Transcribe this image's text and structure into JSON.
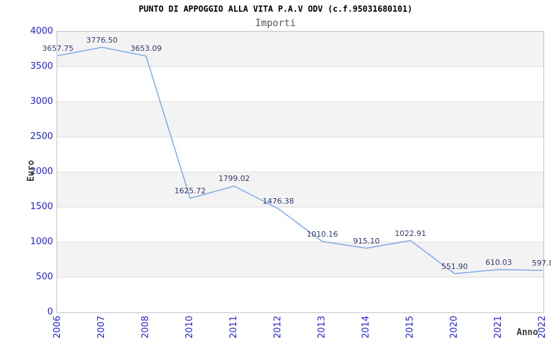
{
  "header": {
    "title": "PUNTO DI APPOGGIO ALLA VITA P.A.V ODV (c.f.95031680101)",
    "subtitle": "Importi"
  },
  "chart_data": {
    "type": "line",
    "title": "PUNTO DI APPOGGIO ALLA VITA P.A.V ODV (c.f.95031680101)",
    "subtitle": "Importi",
    "xlabel": "Anno",
    "ylabel": "Euro",
    "categories": [
      "2006",
      "2007",
      "2008",
      "2010",
      "2011",
      "2012",
      "2013",
      "2014",
      "2015",
      "2020",
      "2021",
      "2022"
    ],
    "values": [
      3657.75,
      3776.5,
      3653.09,
      1625.72,
      1799.02,
      1476.38,
      1010.16,
      915.1,
      1022.91,
      551.9,
      610.03,
      597.8
    ],
    "value_labels": [
      "3657.75",
      "3776.50",
      "3653.09",
      "1625.72",
      "1799.02",
      "1476.38",
      "1010.16",
      "915.10",
      "1022.91",
      "551.90",
      "610.03",
      "597.8"
    ],
    "ylim": [
      0,
      4000
    ],
    "yticks": [
      0,
      500,
      1000,
      1500,
      2000,
      2500,
      3000,
      3500,
      4000
    ],
    "grid": true,
    "legend": "none",
    "band_colors": [
      "#f3f3f3",
      "#ffffff"
    ],
    "line_color": "#7fa9e8",
    "gridline_color": "#dcdcdc",
    "tick_label_color": "#2121dd",
    "value_label_color": "#32386e"
  }
}
